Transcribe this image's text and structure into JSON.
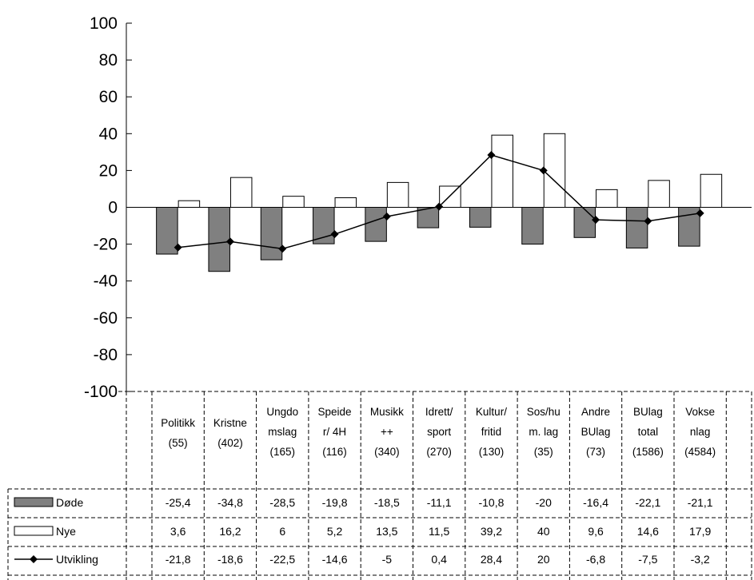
{
  "chart_data": {
    "type": "bar",
    "ylim": [
      -100,
      100
    ],
    "yticks": [
      100,
      80,
      60,
      40,
      20,
      0,
      -20,
      -40,
      -60,
      -80,
      -100
    ],
    "categories": [
      [
        "Politikk",
        "(55)"
      ],
      [
        "Kristne",
        "(402)"
      ],
      [
        "Ungdo",
        "mslag",
        "(165)"
      ],
      [
        "Speide",
        "r/ 4H",
        "(116)"
      ],
      [
        "Musikk",
        "++",
        "(340)"
      ],
      [
        "Idrett/",
        "sport",
        "(270)"
      ],
      [
        "Kultur/",
        "fritid",
        "(130)"
      ],
      [
        "Sos/hu",
        "m. lag",
        "(35)"
      ],
      [
        "Andre",
        "BUlag",
        "(73)"
      ],
      [
        "BUlag",
        "total",
        "(1586)"
      ],
      [
        "Vokse",
        "nlag",
        "(4584)"
      ]
    ],
    "series": [
      {
        "name": "Døde",
        "kind": "bar",
        "color": "#808080",
        "values": [
          -25.4,
          -34.8,
          -28.5,
          -19.8,
          -18.5,
          -11.1,
          -10.8,
          -20,
          -16.4,
          -22.1,
          -21.1
        ],
        "labels": [
          "-25,4",
          "-34,8",
          "-28,5",
          "-19,8",
          "-18,5",
          "-11,1",
          "-10,8",
          "-20",
          "-16,4",
          "-22,1",
          "-21,1"
        ]
      },
      {
        "name": "Nye",
        "kind": "bar",
        "color": "#ffffff",
        "values": [
          3.6,
          16.2,
          6,
          5.2,
          13.5,
          11.5,
          39.2,
          40,
          9.6,
          14.6,
          17.9
        ],
        "labels": [
          "3,6",
          "16,2",
          "6",
          "5,2",
          "13,5",
          "11,5",
          "39,2",
          "40",
          "9,6",
          "14,6",
          "17,9"
        ]
      },
      {
        "name": "Utvikling",
        "kind": "line",
        "color": "#000000",
        "values": [
          -21.8,
          -18.6,
          -22.5,
          -14.6,
          -5,
          0.4,
          28.4,
          20,
          -6.8,
          -7.5,
          -3.2
        ],
        "labels": [
          "-21,8",
          "-18,6",
          "-22,5",
          "-14,6",
          "-5",
          "0,4",
          "28,4",
          "20",
          "-6,8",
          "-7,5",
          "-3,2"
        ]
      }
    ],
    "legend": "table-left",
    "grid": false
  }
}
